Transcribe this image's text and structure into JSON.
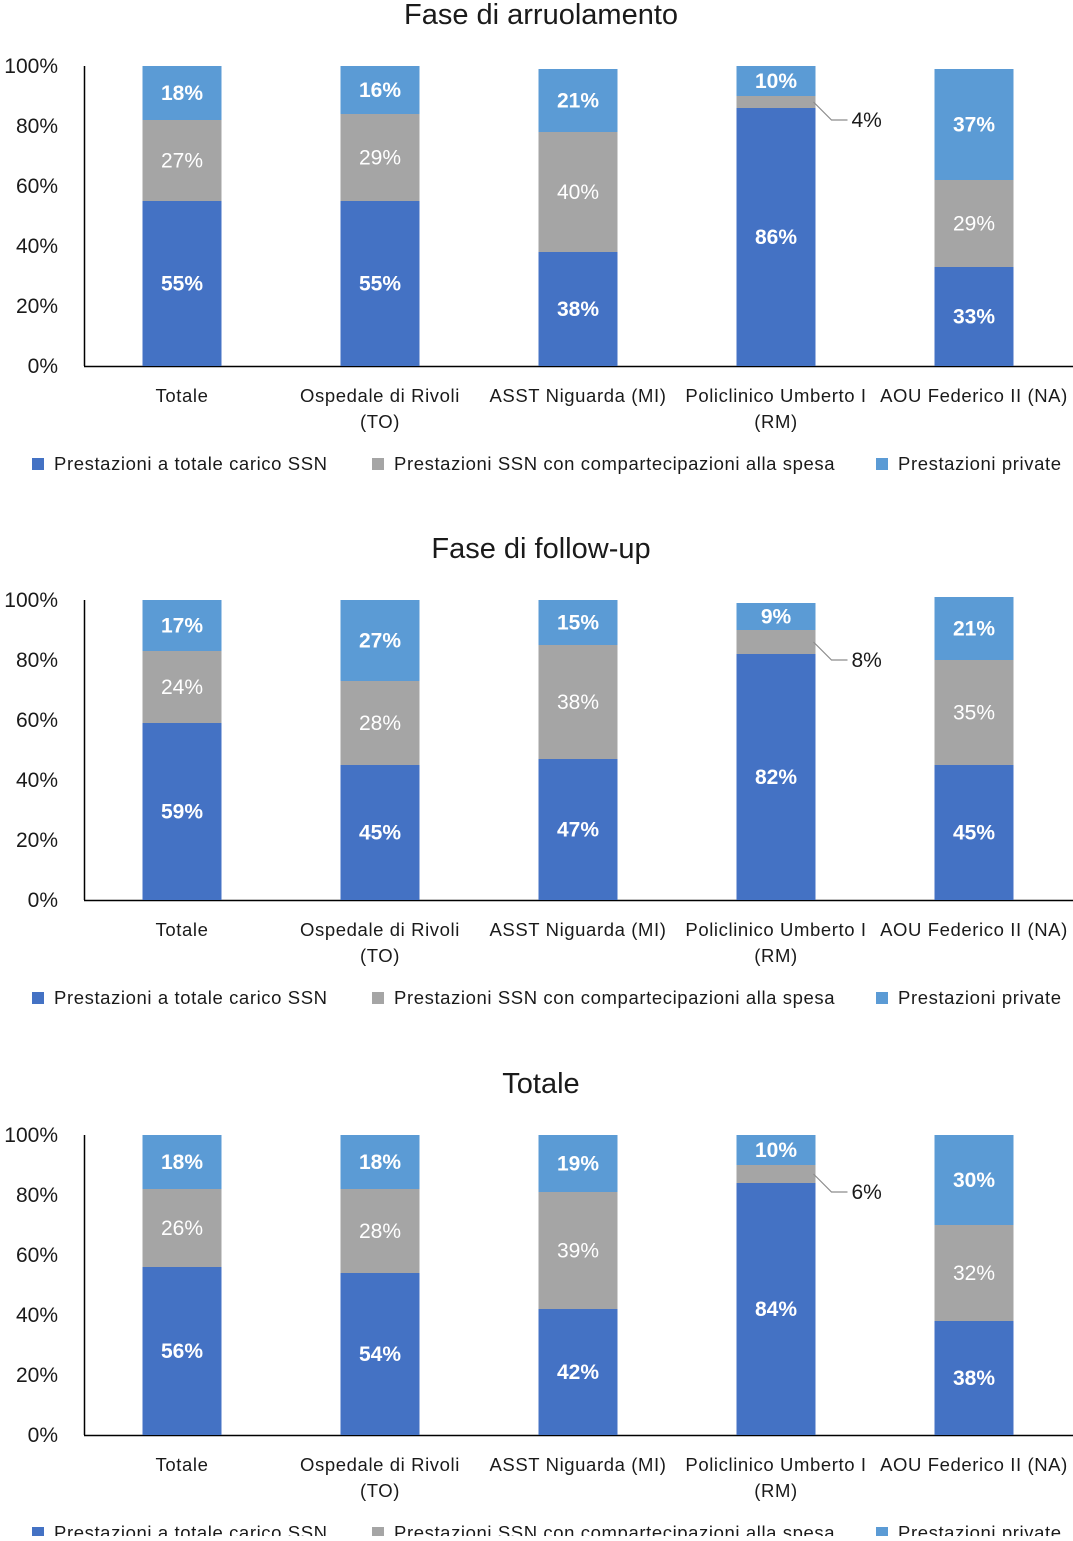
{
  "colors": {
    "ssn": "#4472C4",
    "copay": "#A5A5A5",
    "private": "#5B9BD5"
  },
  "chart_data": [
    {
      "type": "bar",
      "stacked": true,
      "title": "Fase di arruolamento",
      "categories": [
        [
          "Totale"
        ],
        [
          "Ospedale di Rivoli",
          "(TO)"
        ],
        [
          "ASST Niguarda (MI)"
        ],
        [
          "Policlinico Umberto I",
          "(RM)"
        ],
        [
          "AOU Federico II (NA)"
        ]
      ],
      "yticks": [
        "0%",
        "20%",
        "40%",
        "60%",
        "80%",
        "100%"
      ],
      "ylim": [
        0,
        100
      ],
      "legend_position": "bottom",
      "series": [
        {
          "name": "Prestazioni a totale carico SSN",
          "values": [
            55,
            55,
            38,
            86,
            33
          ]
        },
        {
          "name": "Prestazioni SSN con compartecipazioni alla spesa",
          "values": [
            27,
            29,
            40,
            4,
            29
          ]
        },
        {
          "name": "Prestazioni private",
          "values": [
            18,
            16,
            21,
            10,
            37
          ]
        }
      ]
    },
    {
      "type": "bar",
      "stacked": true,
      "title": "Fase di follow-up",
      "categories": [
        [
          "Totale"
        ],
        [
          "Ospedale di Rivoli",
          "(TO)"
        ],
        [
          "ASST Niguarda (MI)"
        ],
        [
          "Policlinico Umberto I",
          "(RM)"
        ],
        [
          "AOU Federico II (NA)"
        ]
      ],
      "yticks": [
        "0%",
        "20%",
        "40%",
        "60%",
        "80%",
        "100%"
      ],
      "ylim": [
        0,
        100
      ],
      "legend_position": "bottom",
      "series": [
        {
          "name": "Prestazioni a totale carico SSN",
          "values": [
            59,
            45,
            47,
            82,
            45
          ]
        },
        {
          "name": "Prestazioni SSN con compartecipazioni alla spesa",
          "values": [
            24,
            28,
            38,
            8,
            35
          ]
        },
        {
          "name": "Prestazioni private",
          "values": [
            17,
            27,
            15,
            9,
            21
          ]
        }
      ]
    },
    {
      "type": "bar",
      "stacked": true,
      "title": "Totale",
      "categories": [
        [
          "Totale"
        ],
        [
          "Ospedale di Rivoli",
          "(TO)"
        ],
        [
          "ASST Niguarda (MI)"
        ],
        [
          "Policlinico Umberto I",
          "(RM)"
        ],
        [
          "AOU Federico II (NA)"
        ]
      ],
      "yticks": [
        "0%",
        "20%",
        "40%",
        "60%",
        "80%",
        "100%"
      ],
      "ylim": [
        0,
        100
      ],
      "legend_position": "bottom",
      "series": [
        {
          "name": "Prestazioni a totale carico SSN",
          "values": [
            56,
            54,
            42,
            84,
            38
          ]
        },
        {
          "name": "Prestazioni SSN con compartecipazioni alla spesa",
          "values": [
            26,
            28,
            39,
            6,
            32
          ]
        },
        {
          "name": "Prestazioni private",
          "values": [
            18,
            18,
            19,
            10,
            30
          ]
        }
      ]
    }
  ]
}
